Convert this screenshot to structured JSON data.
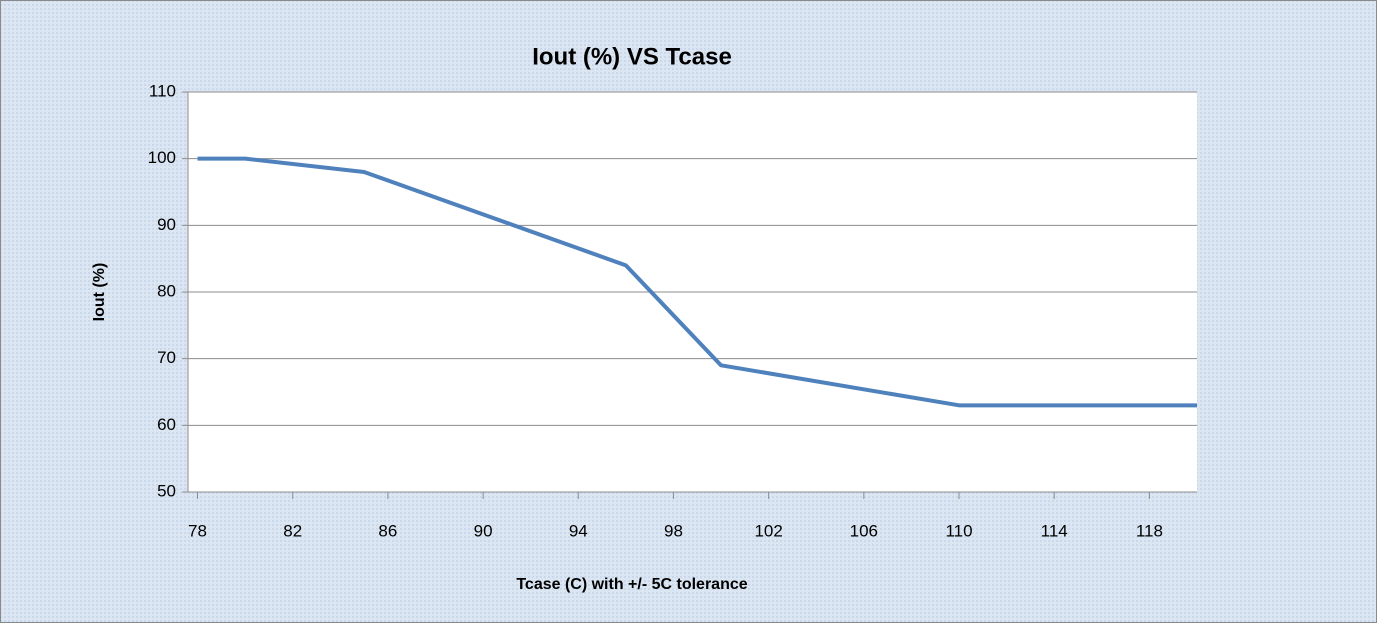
{
  "chart_data": {
    "type": "line",
    "title": "Iout (%) VS Tcase",
    "x_label": "Tcase (C) with +/- 5C tolerance",
    "y_label": "Iout (%)",
    "x": [
      78,
      80,
      85,
      96,
      100,
      110,
      120
    ],
    "series": [
      {
        "name": "Iout (%)",
        "color": "#4f81bd",
        "values": [
          100,
          100,
          98,
          84,
          69,
          63,
          63
        ]
      }
    ],
    "xlim": [
      77.6,
      120
    ],
    "xticks": [
      78,
      82,
      86,
      90,
      94,
      98,
      102,
      106,
      110,
      114,
      118
    ],
    "ylim": [
      50,
      110
    ],
    "yticks": [
      50,
      60,
      70,
      80,
      90,
      100,
      110
    ],
    "grid": true
  }
}
